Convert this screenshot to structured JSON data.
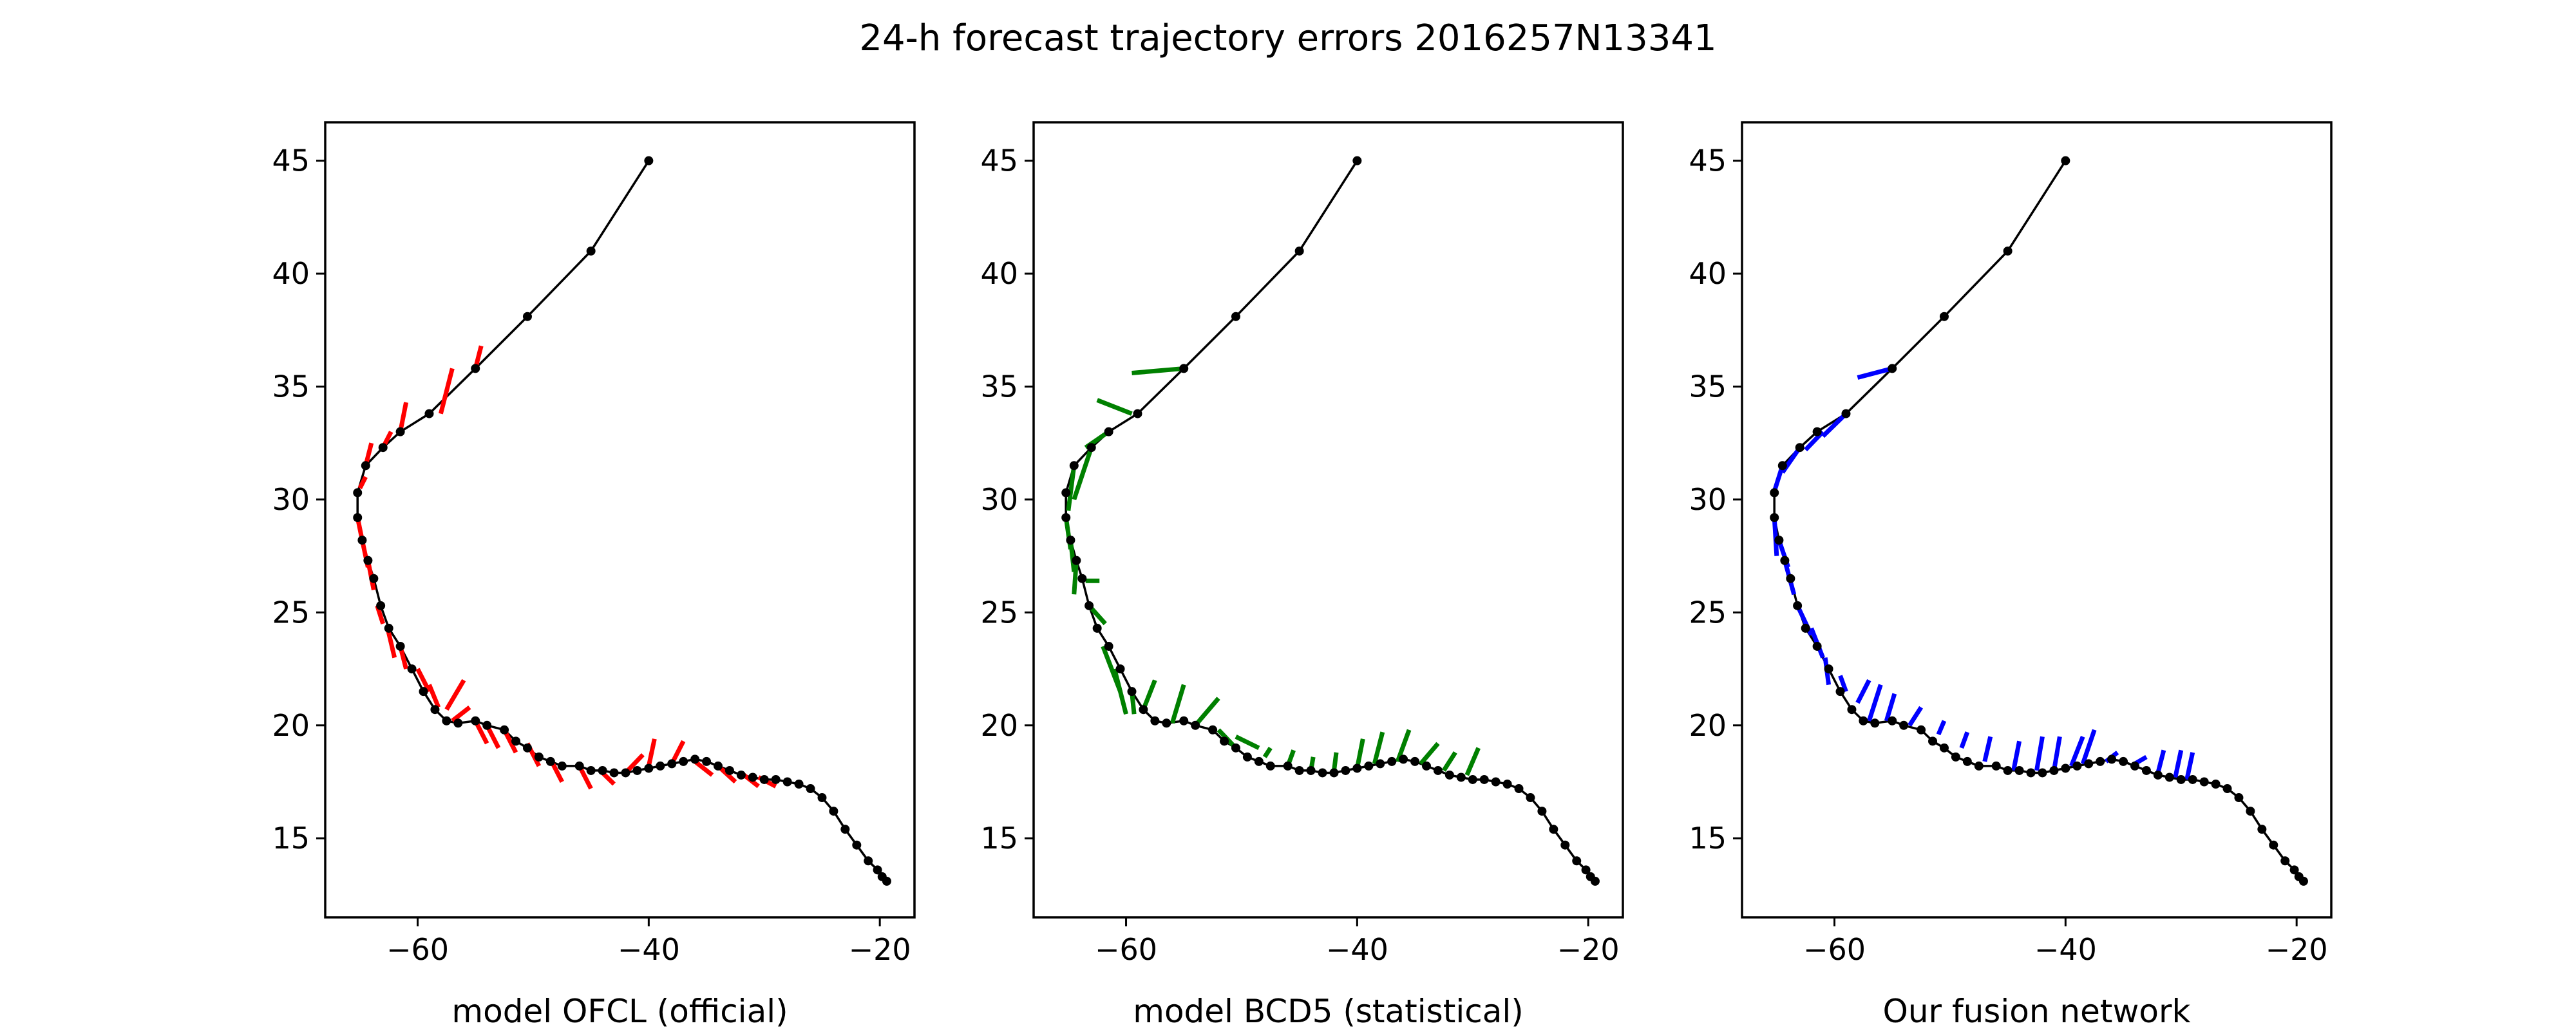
{
  "title": "24-h forecast trajectory errors 2016257N13341",
  "chart_data": [
    {
      "type": "line",
      "xlabel": "model OFCL (official)",
      "error_color": "#ff0000",
      "xlim": [
        -68,
        -17
      ],
      "ylim": [
        11.5,
        46.7
      ],
      "xticks": [
        -60,
        -40,
        -20
      ],
      "yticks": [
        15,
        20,
        25,
        30,
        35,
        40,
        45
      ],
      "errors": [
        [
          [
            -55,
            35.8
          ],
          [
            -54.5,
            36.8
          ]
        ],
        [
          [
            -58,
            33.8
          ],
          [
            -57,
            35.8
          ]
        ],
        [
          [
            -61.5,
            33
          ],
          [
            -61,
            34.3
          ]
        ],
        [
          [
            -63,
            32.3
          ],
          [
            -62.3,
            33
          ]
        ],
        [
          [
            -64.5,
            31.5
          ],
          [
            -64,
            32.5
          ]
        ],
        [
          [
            -65,
            30.5
          ],
          [
            -64.5,
            31
          ]
        ],
        [
          [
            -65.2,
            29.2
          ],
          [
            -64.8,
            28.2
          ]
        ],
        [
          [
            -64.8,
            28.2
          ],
          [
            -64.3,
            27
          ]
        ],
        [
          [
            -64.3,
            27.3
          ],
          [
            -63.8,
            26
          ]
        ],
        [
          [
            -63.5,
            25.3
          ],
          [
            -63,
            24.5
          ]
        ],
        [
          [
            -62.6,
            24.3
          ],
          [
            -62,
            23
          ]
        ],
        [
          [
            -61.5,
            23.5
          ],
          [
            -61,
            22.5
          ]
        ],
        [
          [
            -60,
            22.5
          ],
          [
            -59,
            21.5
          ]
        ],
        [
          [
            -59,
            21.8
          ],
          [
            -58.2,
            20.8
          ]
        ],
        [
          [
            -57.5,
            20.7
          ],
          [
            -56,
            22
          ]
        ],
        [
          [
            -57,
            20.2
          ],
          [
            -55.5,
            20.8
          ]
        ],
        [
          [
            -55,
            20.2
          ],
          [
            -54,
            19.2
          ]
        ],
        [
          [
            -54,
            20
          ],
          [
            -53,
            19
          ]
        ],
        [
          [
            -52.5,
            19.8
          ],
          [
            -51.5,
            18.8
          ]
        ],
        [
          [
            -50.5,
            19.2
          ],
          [
            -49.5,
            18.2
          ]
        ],
        [
          [
            -48.5,
            18.5
          ],
          [
            -47.5,
            17.5
          ]
        ],
        [
          [
            -46,
            18.2
          ],
          [
            -45,
            17.2
          ]
        ],
        [
          [
            -44,
            17.9
          ],
          [
            -43,
            17.4
          ]
        ],
        [
          [
            -42,
            17.9
          ],
          [
            -40.5,
            18.7
          ]
        ],
        [
          [
            -40,
            18.2
          ],
          [
            -39.5,
            19.4
          ]
        ],
        [
          [
            -38,
            18.3
          ],
          [
            -37,
            19.3
          ]
        ],
        [
          [
            -36,
            18.4
          ],
          [
            -34.5,
            17.8
          ]
        ],
        [
          [
            -34,
            18.2
          ],
          [
            -32.5,
            17.5
          ]
        ],
        [
          [
            -32,
            17.9
          ],
          [
            -30.5,
            17.3
          ]
        ],
        [
          [
            -30.5,
            17.7
          ],
          [
            -29,
            17.3
          ]
        ]
      ]
    },
    {
      "type": "line",
      "xlabel": "model BCD5 (statistical)",
      "error_color": "#008000",
      "xlim": [
        -68,
        -17
      ],
      "ylim": [
        11.5,
        46.7
      ],
      "xticks": [
        -60,
        -40,
        -20
      ],
      "yticks": [
        15,
        20,
        25,
        30,
        35,
        40,
        45
      ],
      "errors": [
        [
          [
            -55,
            35.8
          ],
          [
            -59.5,
            35.6
          ]
        ],
        [
          [
            -59.5,
            33.8
          ],
          [
            -62.5,
            34.4
          ]
        ],
        [
          [
            -61.5,
            33
          ],
          [
            -63.5,
            32.3
          ]
        ],
        [
          [
            -63,
            32.3
          ],
          [
            -64.5,
            30
          ]
        ],
        [
          [
            -64.5,
            31.5
          ],
          [
            -65,
            29.5
          ]
        ],
        [
          [
            -65.2,
            29.2
          ],
          [
            -64.8,
            27.8
          ]
        ],
        [
          [
            -64.8,
            28.2
          ],
          [
            -64.5,
            26.8
          ]
        ],
        [
          [
            -64.3,
            27.3
          ],
          [
            -64.5,
            25.8
          ]
        ],
        [
          [
            -63.5,
            26.4
          ],
          [
            -62.3,
            26.4
          ]
        ],
        [
          [
            -63.2,
            25.3
          ],
          [
            -61.8,
            24.5
          ]
        ],
        [
          [
            -62,
            23.5
          ],
          [
            -60.5,
            21.5
          ]
        ],
        [
          [
            -61,
            22.5
          ],
          [
            -60,
            20.5
          ]
        ],
        [
          [
            -59.5,
            21.5
          ],
          [
            -59.3,
            20.5
          ]
        ],
        [
          [
            -58.5,
            20.7
          ],
          [
            -57.5,
            22
          ]
        ],
        [
          [
            -56,
            20.1
          ],
          [
            -55,
            21.8
          ]
        ],
        [
          [
            -54,
            20
          ],
          [
            -52,
            21.2
          ]
        ],
        [
          [
            -52,
            19.8
          ],
          [
            -50.5,
            19
          ]
        ],
        [
          [
            -50.5,
            19.5
          ],
          [
            -48.5,
            19
          ]
        ],
        [
          [
            -48,
            18.6
          ],
          [
            -47.5,
            19
          ]
        ],
        [
          [
            -46,
            18.2
          ],
          [
            -45.5,
            18.9
          ]
        ],
        [
          [
            -44,
            18
          ],
          [
            -43.8,
            18.6
          ]
        ],
        [
          [
            -42,
            18
          ],
          [
            -41.8,
            18.8
          ]
        ],
        [
          [
            -40,
            18.1
          ],
          [
            -39.5,
            19.4
          ]
        ],
        [
          [
            -38.5,
            18.3
          ],
          [
            -37.8,
            19.7
          ]
        ],
        [
          [
            -36.5,
            18.4
          ],
          [
            -35.5,
            19.8
          ]
        ],
        [
          [
            -34.5,
            18.3
          ],
          [
            -33,
            19.2
          ]
        ],
        [
          [
            -32.5,
            18
          ],
          [
            -31.5,
            18.8
          ]
        ],
        [
          [
            -30.5,
            17.8
          ],
          [
            -29.5,
            19
          ]
        ]
      ]
    },
    {
      "type": "line",
      "xlabel": "Our fusion network",
      "error_color": "#0000ff",
      "xlim": [
        -68,
        -17
      ],
      "ylim": [
        11.5,
        46.7
      ],
      "xticks": [
        -60,
        -40,
        -20
      ],
      "yticks": [
        15,
        20,
        25,
        30,
        35,
        40,
        45
      ],
      "errors": [
        [
          [
            -55,
            35.8
          ],
          [
            -58,
            35.4
          ]
        ],
        [
          [
            -59,
            33.8
          ],
          [
            -61,
            32.8
          ]
        ],
        [
          [
            -61,
            33
          ],
          [
            -62.5,
            32.2
          ]
        ],
        [
          [
            -63,
            32.3
          ],
          [
            -64.5,
            31.2
          ]
        ],
        [
          [
            -64.5,
            31.5
          ],
          [
            -65.3,
            30.2
          ]
        ],
        [
          [
            -65.2,
            29.2
          ],
          [
            -65,
            27.5
          ]
        ],
        [
          [
            -64.8,
            28.2
          ],
          [
            -64,
            27
          ]
        ],
        [
          [
            -64.3,
            27.3
          ],
          [
            -63.5,
            25.8
          ]
        ],
        [
          [
            -63.2,
            25.3
          ],
          [
            -62,
            24
          ]
        ],
        [
          [
            -62,
            24.3
          ],
          [
            -61,
            23
          ]
        ],
        [
          [
            -60.8,
            23
          ],
          [
            -60.5,
            21.8
          ]
        ],
        [
          [
            -59.5,
            22.2
          ],
          [
            -59,
            21.5
          ]
        ],
        [
          [
            -58,
            21
          ],
          [
            -57,
            22
          ]
        ],
        [
          [
            -57,
            20.2
          ],
          [
            -56,
            21.8
          ]
        ],
        [
          [
            -55.5,
            20.2
          ],
          [
            -54.8,
            21.4
          ]
        ],
        [
          [
            -53.5,
            20
          ],
          [
            -52.5,
            20.8
          ]
        ],
        [
          [
            -51,
            19.6
          ],
          [
            -50.5,
            20.2
          ]
        ],
        [
          [
            -49,
            19
          ],
          [
            -48.5,
            19.7
          ]
        ],
        [
          [
            -47,
            18.4
          ],
          [
            -46.5,
            19.5
          ]
        ],
        [
          [
            -44.5,
            18
          ],
          [
            -44,
            19.3
          ]
        ],
        [
          [
            -42.5,
            18
          ],
          [
            -42,
            19.5
          ]
        ],
        [
          [
            -41,
            18
          ],
          [
            -40.5,
            19.5
          ]
        ],
        [
          [
            -39.5,
            18.2
          ],
          [
            -38.5,
            19.5
          ]
        ],
        [
          [
            -38.5,
            18.3
          ],
          [
            -37.5,
            19.8
          ]
        ],
        [
          [
            -36.5,
            18.4
          ],
          [
            -35.5,
            18.8
          ]
        ],
        [
          [
            -34,
            18.3
          ],
          [
            -33,
            18.6
          ]
        ],
        [
          [
            -32,
            17.9
          ],
          [
            -31.5,
            18.9
          ]
        ],
        [
          [
            -30.5,
            17.7
          ],
          [
            -30,
            18.9
          ]
        ],
        [
          [
            -29.5,
            17.6
          ],
          [
            -29,
            18.8
          ]
        ]
      ]
    }
  ],
  "track": [
    [
      -40,
      45
    ],
    [
      -45,
      41
    ],
    [
      -50.5,
      38.1
    ],
    [
      -55,
      35.8
    ],
    [
      -59,
      33.8
    ],
    [
      -61.5,
      33
    ],
    [
      -63,
      32.3
    ],
    [
      -64.5,
      31.5
    ],
    [
      -65.2,
      30.3
    ],
    [
      -65.2,
      29.2
    ],
    [
      -64.8,
      28.2
    ],
    [
      -64.3,
      27.3
    ],
    [
      -63.8,
      26.5
    ],
    [
      -63.2,
      25.3
    ],
    [
      -62.5,
      24.3
    ],
    [
      -61.5,
      23.5
    ],
    [
      -60.5,
      22.5
    ],
    [
      -59.5,
      21.5
    ],
    [
      -58.5,
      20.7
    ],
    [
      -57.5,
      20.2
    ],
    [
      -56.5,
      20.1
    ],
    [
      -55,
      20.2
    ],
    [
      -54,
      20
    ],
    [
      -52.5,
      19.8
    ],
    [
      -51.5,
      19.3
    ],
    [
      -50.5,
      19
    ],
    [
      -49.5,
      18.6
    ],
    [
      -48.5,
      18.4
    ],
    [
      -47.5,
      18.2
    ],
    [
      -46,
      18.2
    ],
    [
      -45,
      18
    ],
    [
      -44,
      18
    ],
    [
      -43,
      17.9
    ],
    [
      -42,
      17.9
    ],
    [
      -41,
      18
    ],
    [
      -40,
      18.1
    ],
    [
      -39,
      18.2
    ],
    [
      -38,
      18.3
    ],
    [
      -37,
      18.4
    ],
    [
      -36,
      18.5
    ],
    [
      -35,
      18.4
    ],
    [
      -34,
      18.2
    ],
    [
      -33,
      18
    ],
    [
      -32,
      17.8
    ],
    [
      -31,
      17.7
    ],
    [
      -30,
      17.6
    ],
    [
      -29,
      17.6
    ],
    [
      -28,
      17.5
    ],
    [
      -27,
      17.4
    ],
    [
      -26,
      17.2
    ],
    [
      -25,
      16.8
    ],
    [
      -24,
      16.2
    ],
    [
      -23,
      15.4
    ],
    [
      -22,
      14.7
    ],
    [
      -21,
      14
    ],
    [
      -20.2,
      13.6
    ],
    [
      -19.8,
      13.3
    ],
    [
      -19.4,
      13.1
    ]
  ]
}
